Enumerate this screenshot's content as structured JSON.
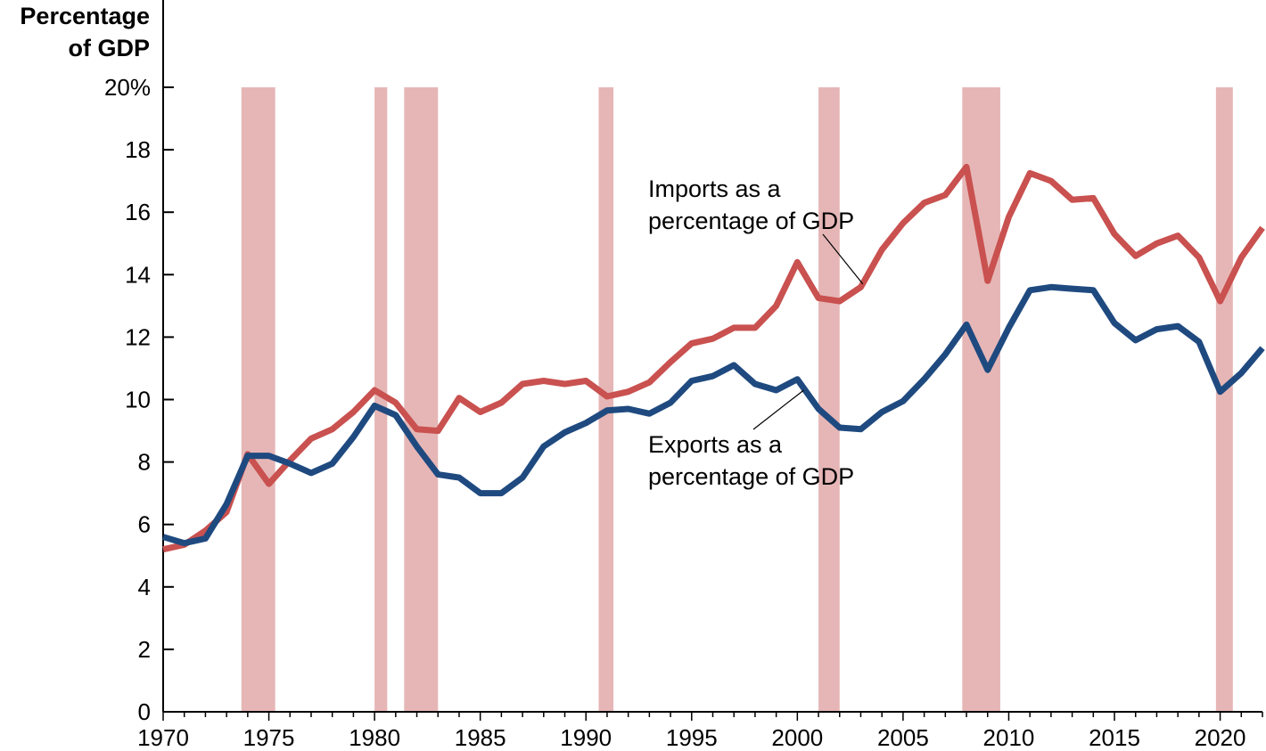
{
  "chart_data": {
    "type": "line",
    "title": "",
    "ylabel_lines": [
      "Percentage",
      "of GDP"
    ],
    "xlabel": "",
    "xlim": [
      1970,
      2022
    ],
    "ylim": [
      0,
      20
    ],
    "x_ticks": [
      1970,
      1975,
      1980,
      1985,
      1990,
      1995,
      2000,
      2005,
      2010,
      2015,
      2020
    ],
    "y_ticks": [
      0,
      2,
      4,
      6,
      8,
      10,
      12,
      14,
      16,
      18,
      20
    ],
    "y_tick_labels": [
      "0",
      "2",
      "4",
      "6",
      "8",
      "10",
      "12",
      "14",
      "16",
      "18",
      "20%"
    ],
    "grid": false,
    "colors": {
      "imports": "#c9514f",
      "exports": "#1f4a80",
      "recession": "#e6b6b6"
    },
    "recessions": [
      [
        1973.7,
        1975.3
      ],
      [
        1980.0,
        1980.6
      ],
      [
        1981.4,
        1983.0
      ],
      [
        1990.6,
        1991.3
      ],
      [
        2001.0,
        2002.0
      ],
      [
        2007.8,
        2009.6
      ],
      [
        2019.8,
        2020.6
      ]
    ],
    "x": [
      1970,
      1971,
      1972,
      1973,
      1974,
      1975,
      1976,
      1977,
      1978,
      1979,
      1980,
      1981,
      1982,
      1983,
      1984,
      1985,
      1986,
      1987,
      1988,
      1989,
      1990,
      1991,
      1992,
      1993,
      1994,
      1995,
      1996,
      1997,
      1998,
      1999,
      2000,
      2001,
      2002,
      2003,
      2004,
      2005,
      2006,
      2007,
      2008,
      2009,
      2010,
      2011,
      2012,
      2013,
      2014,
      2015,
      2016,
      2017,
      2018,
      2019,
      2020,
      2021,
      2022
    ],
    "series": [
      {
        "key": "imports",
        "values": [
          5.2,
          5.35,
          5.8,
          6.4,
          8.25,
          7.3,
          8.05,
          8.75,
          9.05,
          9.6,
          10.3,
          9.9,
          9.05,
          9.0,
          10.05,
          9.6,
          9.9,
          10.5,
          10.6,
          10.5,
          10.6,
          10.1,
          10.25,
          10.55,
          11.2,
          11.8,
          11.95,
          12.3,
          12.3,
          13.0,
          14.4,
          13.25,
          13.15,
          13.6,
          14.8,
          15.65,
          16.3,
          16.55,
          17.45,
          13.8,
          15.85,
          17.25,
          17.0,
          16.4,
          16.45,
          15.3,
          14.6,
          15.0,
          15.25,
          14.55,
          13.15,
          14.55,
          15.5
        ]
      },
      {
        "key": "exports",
        "values": [
          5.6,
          5.4,
          5.55,
          6.65,
          8.2,
          8.2,
          7.95,
          7.65,
          7.95,
          8.8,
          9.8,
          9.5,
          8.5,
          7.6,
          7.5,
          7.0,
          7.0,
          7.5,
          8.5,
          8.95,
          9.25,
          9.65,
          9.7,
          9.55,
          9.9,
          10.6,
          10.75,
          11.1,
          10.5,
          10.3,
          10.65,
          9.7,
          9.1,
          9.05,
          9.6,
          9.95,
          10.65,
          11.45,
          12.4,
          10.95,
          12.3,
          13.5,
          13.6,
          13.55,
          13.5,
          12.45,
          11.9,
          12.25,
          12.35,
          11.85,
          10.25,
          10.85,
          11.65
        ]
      }
    ],
    "annotations": [
      {
        "series": "imports",
        "lines": [
          "Imports as a",
          "percentage of GDP"
        ],
        "pointer_x": 2003.1,
        "pointer_y": 13.7
      },
      {
        "series": "exports",
        "lines": [
          "Exports as a",
          "percentage of GDP"
        ],
        "pointer_x": 2000.3,
        "pointer_y": 10.3
      }
    ]
  }
}
